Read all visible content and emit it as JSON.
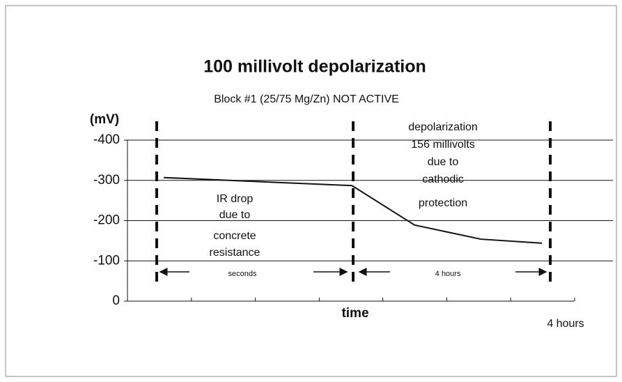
{
  "chart_data": {
    "type": "line",
    "title": "100 millivolt depolarization",
    "subtitle": "Block #1 (25/75  Mg/Zn) NOT ACTIVE",
    "y_label": "(mV)",
    "x_label": "time",
    "x_end_label": "4 hours",
    "xlim": [
      0,
      100
    ],
    "xticks": [
      0,
      14.3,
      28.6,
      42.9,
      57.1,
      71.4,
      85.7,
      100
    ],
    "ylim": [
      0,
      -400
    ],
    "yticks": [
      -400,
      -300,
      -200,
      -100,
      0
    ],
    "grid": true,
    "x": [
      8.1,
      50.2,
      64.2,
      79,
      92.7
    ],
    "series": [
      {
        "color": "#111111",
        "values": [
          -307,
          -287,
          -189,
          -154,
          -144
        ]
      }
    ],
    "annotations": [
      {
        "lines": [
          "IR drop",
          "due to",
          "concrete",
          "resistance"
        ]
      },
      {
        "lines": [
          "depolarization",
          "156 millivolts",
          "due to",
          "cathodic",
          "protection"
        ]
      },
      {
        "lines": [
          "seconds"
        ]
      },
      {
        "lines": [
          "4 hours"
        ]
      }
    ]
  }
}
